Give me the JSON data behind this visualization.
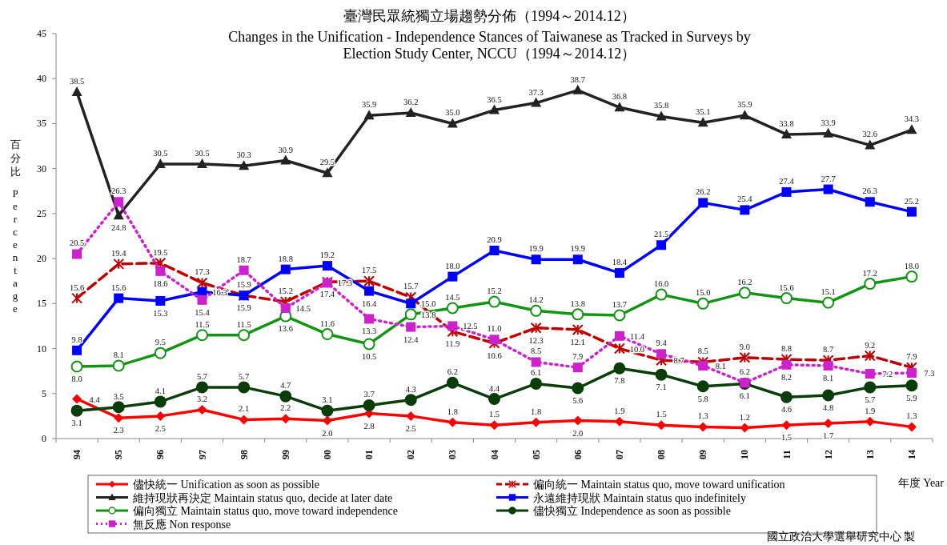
{
  "chart_data": {
    "type": "line",
    "title": "臺灣民眾統獨立場趨勢分佈（1994～2014.12）",
    "subtitle": "Changes in the Unification - Independence Stances of Taiwanese as Tracked in Surveys by Election Study Center, NCCU（1994～2014.12）",
    "ylabel": "百分比 Percentage",
    "xlabel": "年度 Year",
    "categories": [
      "94",
      "95",
      "96",
      "97",
      "98",
      "99",
      "00",
      "01",
      "02",
      "03",
      "04",
      "05",
      "06",
      "07",
      "08",
      "09",
      "10",
      "11",
      "12",
      "13",
      "14"
    ],
    "ylim": [
      0,
      45
    ],
    "yticks": [
      0,
      5,
      10,
      15,
      20,
      25,
      30,
      35,
      40,
      45
    ],
    "grid": false,
    "legend": "bottom",
    "series": [
      {
        "name": "儘快統一 Unification as soon as possible",
        "color": "#ff0000",
        "marker": "diamond",
        "line_style": "solid",
        "values": [
          4.4,
          2.3,
          2.5,
          3.2,
          2.1,
          2.2,
          2.0,
          2.8,
          2.5,
          1.8,
          1.5,
          1.8,
          2.0,
          1.9,
          1.5,
          1.3,
          1.2,
          1.5,
          1.7,
          1.9,
          1.3
        ],
        "value_labels": [
          "4.4",
          "2.3",
          "2.5",
          "3.2",
          "2.1",
          "2.2",
          "2.0",
          "2.8",
          "2.5",
          "1.8",
          "1.5",
          "1.8",
          "2.0",
          "1.9",
          "1.5",
          "1.3",
          "1.2",
          "1.5",
          "1.7",
          "1.9",
          "1.3"
        ]
      },
      {
        "name": "偏向統一 Maintain status quo, move toward unification",
        "color": "#c00000",
        "marker": "cross",
        "line_style": "dashed",
        "values": [
          15.6,
          19.4,
          19.5,
          17.3,
          15.9,
          15.2,
          17.4,
          17.5,
          15.7,
          11.9,
          10.6,
          12.3,
          12.1,
          10.0,
          8.7,
          8.5,
          9.0,
          8.8,
          8.7,
          9.2,
          7.9
        ],
        "value_labels": [
          "15.6",
          "19.4",
          "19.5",
          "17.3",
          "15.9",
          "15.2",
          "17.4",
          "17.5",
          "15.7",
          "11.9",
          "10.6",
          "12.3",
          "12.1",
          "10.0",
          "8.7",
          "8.5",
          "9.0",
          "8.8",
          "8.7",
          "9.2",
          "7.9"
        ]
      },
      {
        "name": "維持現狀再決定 Maintain status quo, decide at later date",
        "color": "#222222",
        "marker": "triangle",
        "line_style": "solid",
        "values": [
          38.5,
          24.8,
          30.5,
          30.5,
          30.3,
          30.9,
          29.5,
          35.9,
          36.2,
          35.0,
          36.5,
          37.3,
          38.7,
          36.8,
          35.8,
          35.1,
          35.9,
          33.8,
          33.9,
          32.6,
          34.3
        ],
        "value_labels": [
          "38.5",
          "24.8",
          "30.5",
          "30.5",
          "30.3",
          "30.9",
          "29.5",
          "35.9",
          "36.2",
          "35.0",
          "36.5",
          "37.3",
          "38.7",
          "36.8",
          "35.8",
          "35.1",
          "35.9",
          "33.8",
          "33.9",
          "32.6",
          "34.3"
        ]
      },
      {
        "name": "永遠維持現狀 Maintain status quo indefinitely",
        "color": "#0000ff",
        "marker": "square",
        "line_style": "solid",
        "values": [
          9.8,
          15.6,
          15.3,
          16.3,
          15.9,
          18.8,
          19.2,
          16.4,
          15.0,
          18.0,
          20.9,
          19.9,
          19.9,
          18.4,
          21.5,
          26.2,
          25.4,
          27.4,
          27.7,
          26.3,
          25.2
        ],
        "value_labels": [
          "9.8",
          "15.6",
          "15.3",
          "16.3",
          "15.9",
          "18.8",
          "19.2",
          "16.4",
          "15.0",
          "18.0",
          "20.9",
          "19.9",
          "19.9",
          "18.4",
          "21.5",
          "26.2",
          "25.4",
          "27.4",
          "27.7",
          "26.3",
          "25.2"
        ]
      },
      {
        "name": "偏向獨立 Maintain status quo, move toward independence",
        "color": "#149414",
        "marker": "circle",
        "line_style": "solid",
        "values": [
          8.0,
          8.1,
          9.5,
          11.5,
          11.5,
          13.6,
          11.6,
          10.5,
          13.8,
          14.5,
          15.2,
          14.2,
          13.8,
          13.7,
          16.0,
          15.0,
          16.2,
          15.6,
          15.1,
          17.2,
          18.0
        ],
        "value_labels": [
          "8.0",
          "8.1",
          "9.5",
          "11.5",
          "11.5",
          "13.6",
          "11.6",
          "10.5",
          "13.8",
          "14.5",
          "15.2",
          "14.2",
          "13.8",
          "13.7",
          "16.0",
          "15.0",
          "16.2",
          "15.6",
          "15.1",
          "17.2",
          "18.0"
        ]
      },
      {
        "name": "儘快獨立 Independence as soon as possible",
        "color": "#0b3d0b",
        "marker": "circle",
        "line_style": "solid",
        "values": [
          3.1,
          3.5,
          4.1,
          5.7,
          5.7,
          4.7,
          3.1,
          3.7,
          4.3,
          6.2,
          4.4,
          6.1,
          5.6,
          7.8,
          7.1,
          5.8,
          6.1,
          4.6,
          4.8,
          5.7,
          5.9
        ],
        "value_labels": [
          "3.1",
          "3.5",
          "4.1",
          "5.7",
          "5.7",
          "4.7",
          "3.1",
          "3.7",
          "4.3",
          "6.2",
          "4.4",
          "6.1",
          "5.6",
          "7.8",
          "7.1",
          "5.8",
          "6.1",
          "4.6",
          "4.8",
          "5.7",
          "5.9"
        ]
      },
      {
        "name": "無反應 Non response",
        "color": "#cc22cc",
        "marker": "square",
        "line_style": "dotted",
        "values": [
          20.5,
          26.3,
          18.6,
          15.4,
          18.7,
          14.5,
          17.3,
          13.3,
          12.4,
          12.5,
          11.0,
          8.5,
          7.9,
          11.4,
          9.4,
          8.1,
          6.2,
          8.2,
          8.1,
          7.2,
          7.3
        ],
        "value_labels": [
          "20.5",
          "26.3",
          "18.6",
          "15.4",
          "18.7",
          "14.5",
          "17.3",
          "13.3",
          "12.4",
          "12.5",
          "11.0",
          "8.5",
          "7.9",
          "11.4",
          "9.4",
          "8.1",
          "6.2",
          "8.2",
          "8.1",
          "7.2",
          "7.3"
        ]
      }
    ],
    "annotations": [
      "國立政治大學選舉研究中心 製"
    ]
  }
}
